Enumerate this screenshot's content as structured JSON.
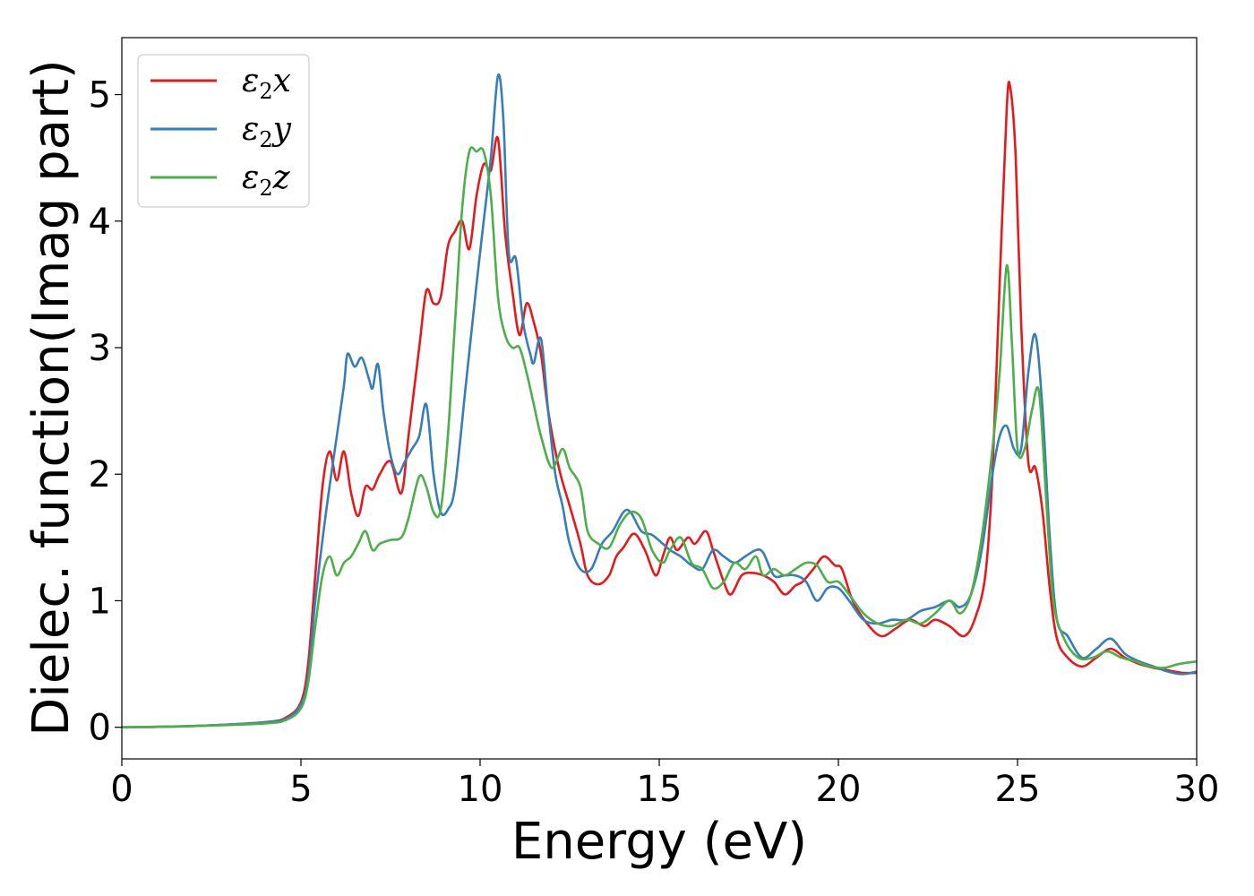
{
  "chart_data": {
    "type": "line",
    "title": "",
    "xlabel": "Energy (eV)",
    "ylabel": "Dielec. function(Imag part)",
    "xlim": [
      0,
      30
    ],
    "ylim": [
      -0.25,
      5.45
    ],
    "xticks": [
      "0",
      "5",
      "10",
      "15",
      "20",
      "25",
      "30"
    ],
    "yticks": [
      "0",
      "1",
      "2",
      "3",
      "4",
      "5"
    ],
    "grid": false,
    "legend_position": "top-left",
    "series": [
      {
        "name": "ε2x",
        "legend_base": "ε",
        "legend_sub": "2",
        "legend_var": "x",
        "color": "#e41a1c",
        "points": [
          [
            0,
            0
          ],
          [
            2,
            0.01
          ],
          [
            4,
            0.04
          ],
          [
            4.6,
            0.08
          ],
          [
            5.0,
            0.2
          ],
          [
            5.2,
            0.5
          ],
          [
            5.4,
            1.2
          ],
          [
            5.6,
            1.9
          ],
          [
            5.8,
            2.18
          ],
          [
            6.0,
            1.95
          ],
          [
            6.2,
            2.18
          ],
          [
            6.4,
            1.85
          ],
          [
            6.6,
            1.67
          ],
          [
            6.8,
            1.9
          ],
          [
            7.0,
            1.88
          ],
          [
            7.2,
            2.0
          ],
          [
            7.5,
            2.1
          ],
          [
            7.8,
            1.85
          ],
          [
            8.0,
            2.3
          ],
          [
            8.3,
            3.0
          ],
          [
            8.5,
            3.45
          ],
          [
            8.7,
            3.35
          ],
          [
            8.9,
            3.4
          ],
          [
            9.1,
            3.8
          ],
          [
            9.3,
            3.92
          ],
          [
            9.5,
            4.0
          ],
          [
            9.7,
            3.78
          ],
          [
            9.9,
            4.2
          ],
          [
            10.1,
            4.45
          ],
          [
            10.3,
            4.4
          ],
          [
            10.5,
            4.65
          ],
          [
            10.7,
            3.9
          ],
          [
            10.9,
            3.45
          ],
          [
            11.1,
            3.1
          ],
          [
            11.3,
            3.35
          ],
          [
            11.5,
            3.2
          ],
          [
            11.7,
            2.95
          ],
          [
            11.9,
            2.5
          ],
          [
            12.2,
            2.05
          ],
          [
            12.5,
            1.75
          ],
          [
            12.8,
            1.45
          ],
          [
            13.0,
            1.2
          ],
          [
            13.3,
            1.13
          ],
          [
            13.6,
            1.2
          ],
          [
            13.8,
            1.35
          ],
          [
            14.0,
            1.42
          ],
          [
            14.3,
            1.53
          ],
          [
            14.6,
            1.4
          ],
          [
            14.9,
            1.2
          ],
          [
            15.1,
            1.35
          ],
          [
            15.3,
            1.5
          ],
          [
            15.5,
            1.4
          ],
          [
            15.8,
            1.5
          ],
          [
            16.0,
            1.45
          ],
          [
            16.3,
            1.55
          ],
          [
            16.5,
            1.4
          ],
          [
            16.8,
            1.15
          ],
          [
            17.0,
            1.05
          ],
          [
            17.3,
            1.2
          ],
          [
            17.6,
            1.22
          ],
          [
            17.9,
            1.2
          ],
          [
            18.2,
            1.15
          ],
          [
            18.5,
            1.05
          ],
          [
            18.8,
            1.12
          ],
          [
            19.0,
            1.15
          ],
          [
            19.3,
            1.25
          ],
          [
            19.6,
            1.35
          ],
          [
            19.9,
            1.28
          ],
          [
            20.1,
            1.25
          ],
          [
            20.4,
            1.0
          ],
          [
            20.8,
            0.82
          ],
          [
            21.2,
            0.72
          ],
          [
            21.6,
            0.78
          ],
          [
            22.0,
            0.85
          ],
          [
            22.4,
            0.8
          ],
          [
            22.7,
            0.85
          ],
          [
            23.1,
            0.8
          ],
          [
            23.5,
            0.72
          ],
          [
            23.8,
            0.85
          ],
          [
            24.1,
            1.2
          ],
          [
            24.3,
            2.0
          ],
          [
            24.5,
            3.5
          ],
          [
            24.7,
            4.9
          ],
          [
            24.8,
            5.05
          ],
          [
            24.95,
            4.5
          ],
          [
            25.1,
            3.2
          ],
          [
            25.3,
            2.1
          ],
          [
            25.5,
            2.05
          ],
          [
            25.7,
            1.7
          ],
          [
            25.9,
            1.1
          ],
          [
            26.1,
            0.7
          ],
          [
            26.4,
            0.55
          ],
          [
            26.8,
            0.48
          ],
          [
            27.2,
            0.55
          ],
          [
            27.6,
            0.62
          ],
          [
            28.0,
            0.55
          ],
          [
            28.4,
            0.5
          ],
          [
            28.8,
            0.47
          ],
          [
            29.2,
            0.45
          ],
          [
            29.6,
            0.43
          ],
          [
            30,
            0.43
          ]
        ]
      },
      {
        "name": "ε2y",
        "legend_base": "ε",
        "legend_sub": "2",
        "legend_var": "y",
        "color": "#377eb8",
        "points": [
          [
            0,
            0
          ],
          [
            2,
            0.01
          ],
          [
            4,
            0.04
          ],
          [
            4.6,
            0.07
          ],
          [
            5.0,
            0.18
          ],
          [
            5.2,
            0.4
          ],
          [
            5.4,
            1.0
          ],
          [
            5.7,
            1.7
          ],
          [
            6.0,
            2.3
          ],
          [
            6.2,
            2.7
          ],
          [
            6.3,
            2.95
          ],
          [
            6.5,
            2.85
          ],
          [
            6.7,
            2.92
          ],
          [
            6.9,
            2.75
          ],
          [
            7.0,
            2.68
          ],
          [
            7.15,
            2.87
          ],
          [
            7.3,
            2.5
          ],
          [
            7.5,
            2.15
          ],
          [
            7.7,
            2.0
          ],
          [
            7.9,
            2.1
          ],
          [
            8.1,
            2.2
          ],
          [
            8.3,
            2.3
          ],
          [
            8.5,
            2.55
          ],
          [
            8.7,
            2.0
          ],
          [
            8.9,
            1.7
          ],
          [
            9.1,
            1.72
          ],
          [
            9.3,
            1.9
          ],
          [
            9.6,
            2.7
          ],
          [
            9.9,
            3.5
          ],
          [
            10.1,
            4.0
          ],
          [
            10.3,
            4.5
          ],
          [
            10.5,
            5.15
          ],
          [
            10.65,
            4.8
          ],
          [
            10.8,
            3.75
          ],
          [
            11.0,
            3.7
          ],
          [
            11.2,
            3.2
          ],
          [
            11.4,
            2.95
          ],
          [
            11.5,
            2.88
          ],
          [
            11.7,
            3.07
          ],
          [
            11.9,
            2.5
          ],
          [
            12.1,
            2.0
          ],
          [
            12.3,
            1.75
          ],
          [
            12.5,
            1.45
          ],
          [
            12.8,
            1.25
          ],
          [
            13.1,
            1.25
          ],
          [
            13.4,
            1.45
          ],
          [
            13.7,
            1.55
          ],
          [
            14.0,
            1.7
          ],
          [
            14.2,
            1.7
          ],
          [
            14.5,
            1.55
          ],
          [
            14.8,
            1.52
          ],
          [
            15.1,
            1.45
          ],
          [
            15.3,
            1.4
          ],
          [
            15.6,
            1.35
          ],
          [
            15.9,
            1.28
          ],
          [
            16.2,
            1.25
          ],
          [
            16.5,
            1.4
          ],
          [
            16.8,
            1.35
          ],
          [
            17.1,
            1.3
          ],
          [
            17.4,
            1.35
          ],
          [
            17.7,
            1.4
          ],
          [
            17.9,
            1.38
          ],
          [
            18.2,
            1.2
          ],
          [
            18.5,
            1.2
          ],
          [
            18.8,
            1.2
          ],
          [
            19.1,
            1.15
          ],
          [
            19.4,
            1.0
          ],
          [
            19.7,
            1.1
          ],
          [
            20.0,
            1.1
          ],
          [
            20.3,
            1.0
          ],
          [
            20.7,
            0.85
          ],
          [
            21.1,
            0.82
          ],
          [
            21.5,
            0.85
          ],
          [
            21.9,
            0.85
          ],
          [
            22.3,
            0.92
          ],
          [
            22.7,
            0.95
          ],
          [
            23.1,
            1.0
          ],
          [
            23.4,
            0.95
          ],
          [
            23.7,
            1.05
          ],
          [
            24.0,
            1.4
          ],
          [
            24.3,
            2.0
          ],
          [
            24.5,
            2.3
          ],
          [
            24.7,
            2.38
          ],
          [
            24.9,
            2.2
          ],
          [
            25.1,
            2.2
          ],
          [
            25.3,
            2.8
          ],
          [
            25.5,
            3.1
          ],
          [
            25.7,
            2.5
          ],
          [
            25.9,
            1.5
          ],
          [
            26.1,
            0.85
          ],
          [
            26.4,
            0.72
          ],
          [
            26.8,
            0.55
          ],
          [
            27.2,
            0.62
          ],
          [
            27.6,
            0.7
          ],
          [
            28.0,
            0.58
          ],
          [
            28.4,
            0.52
          ],
          [
            28.8,
            0.48
          ],
          [
            29.2,
            0.44
          ],
          [
            29.6,
            0.42
          ],
          [
            30,
            0.44
          ]
        ]
      },
      {
        "name": "ε2z",
        "legend_base": "ε",
        "legend_sub": "2",
        "legend_var": "z",
        "color": "#4daf4a",
        "points": [
          [
            0,
            0
          ],
          [
            2,
            0.01
          ],
          [
            4,
            0.03
          ],
          [
            4.6,
            0.06
          ],
          [
            5.0,
            0.15
          ],
          [
            5.2,
            0.35
          ],
          [
            5.4,
            0.8
          ],
          [
            5.6,
            1.2
          ],
          [
            5.8,
            1.35
          ],
          [
            6.0,
            1.2
          ],
          [
            6.2,
            1.3
          ],
          [
            6.4,
            1.35
          ],
          [
            6.6,
            1.45
          ],
          [
            6.8,
            1.55
          ],
          [
            7.0,
            1.4
          ],
          [
            7.2,
            1.45
          ],
          [
            7.5,
            1.48
          ],
          [
            7.8,
            1.5
          ],
          [
            8.0,
            1.65
          ],
          [
            8.3,
            1.98
          ],
          [
            8.5,
            1.9
          ],
          [
            8.7,
            1.7
          ],
          [
            8.9,
            1.72
          ],
          [
            9.1,
            2.3
          ],
          [
            9.3,
            3.2
          ],
          [
            9.5,
            4.1
          ],
          [
            9.7,
            4.55
          ],
          [
            9.9,
            4.55
          ],
          [
            10.1,
            4.55
          ],
          [
            10.3,
            4.2
          ],
          [
            10.5,
            3.4
          ],
          [
            10.7,
            3.1
          ],
          [
            10.9,
            3.0
          ],
          [
            11.1,
            3.0
          ],
          [
            11.3,
            2.8
          ],
          [
            11.5,
            2.55
          ],
          [
            11.7,
            2.3
          ],
          [
            12.0,
            2.05
          ],
          [
            12.3,
            2.2
          ],
          [
            12.5,
            2.05
          ],
          [
            12.8,
            1.9
          ],
          [
            13.0,
            1.55
          ],
          [
            13.3,
            1.45
          ],
          [
            13.6,
            1.42
          ],
          [
            13.9,
            1.6
          ],
          [
            14.2,
            1.7
          ],
          [
            14.5,
            1.65
          ],
          [
            14.8,
            1.4
          ],
          [
            15.1,
            1.3
          ],
          [
            15.3,
            1.4
          ],
          [
            15.6,
            1.5
          ],
          [
            15.9,
            1.3
          ],
          [
            16.2,
            1.25
          ],
          [
            16.5,
            1.1
          ],
          [
            16.8,
            1.15
          ],
          [
            17.1,
            1.3
          ],
          [
            17.4,
            1.25
          ],
          [
            17.7,
            1.35
          ],
          [
            17.9,
            1.2
          ],
          [
            18.2,
            1.25
          ],
          [
            18.5,
            1.2
          ],
          [
            18.8,
            1.25
          ],
          [
            19.1,
            1.3
          ],
          [
            19.4,
            1.28
          ],
          [
            19.7,
            1.15
          ],
          [
            20.0,
            1.15
          ],
          [
            20.3,
            1.05
          ],
          [
            20.7,
            0.9
          ],
          [
            21.1,
            0.82
          ],
          [
            21.5,
            0.8
          ],
          [
            21.9,
            0.85
          ],
          [
            22.3,
            0.82
          ],
          [
            22.7,
            0.9
          ],
          [
            23.1,
            1.0
          ],
          [
            23.4,
            0.9
          ],
          [
            23.7,
            1.05
          ],
          [
            24.0,
            1.5
          ],
          [
            24.3,
            2.2
          ],
          [
            24.5,
            2.8
          ],
          [
            24.7,
            3.65
          ],
          [
            24.85,
            3.0
          ],
          [
            25.0,
            2.2
          ],
          [
            25.2,
            2.2
          ],
          [
            25.4,
            2.5
          ],
          [
            25.6,
            2.65
          ],
          [
            25.8,
            1.8
          ],
          [
            26.0,
            1.0
          ],
          [
            26.3,
            0.7
          ],
          [
            26.7,
            0.55
          ],
          [
            27.1,
            0.55
          ],
          [
            27.5,
            0.6
          ],
          [
            27.9,
            0.55
          ],
          [
            28.3,
            0.52
          ],
          [
            28.7,
            0.48
          ],
          [
            29.1,
            0.47
          ],
          [
            29.5,
            0.5
          ],
          [
            30,
            0.52
          ]
        ]
      }
    ]
  }
}
